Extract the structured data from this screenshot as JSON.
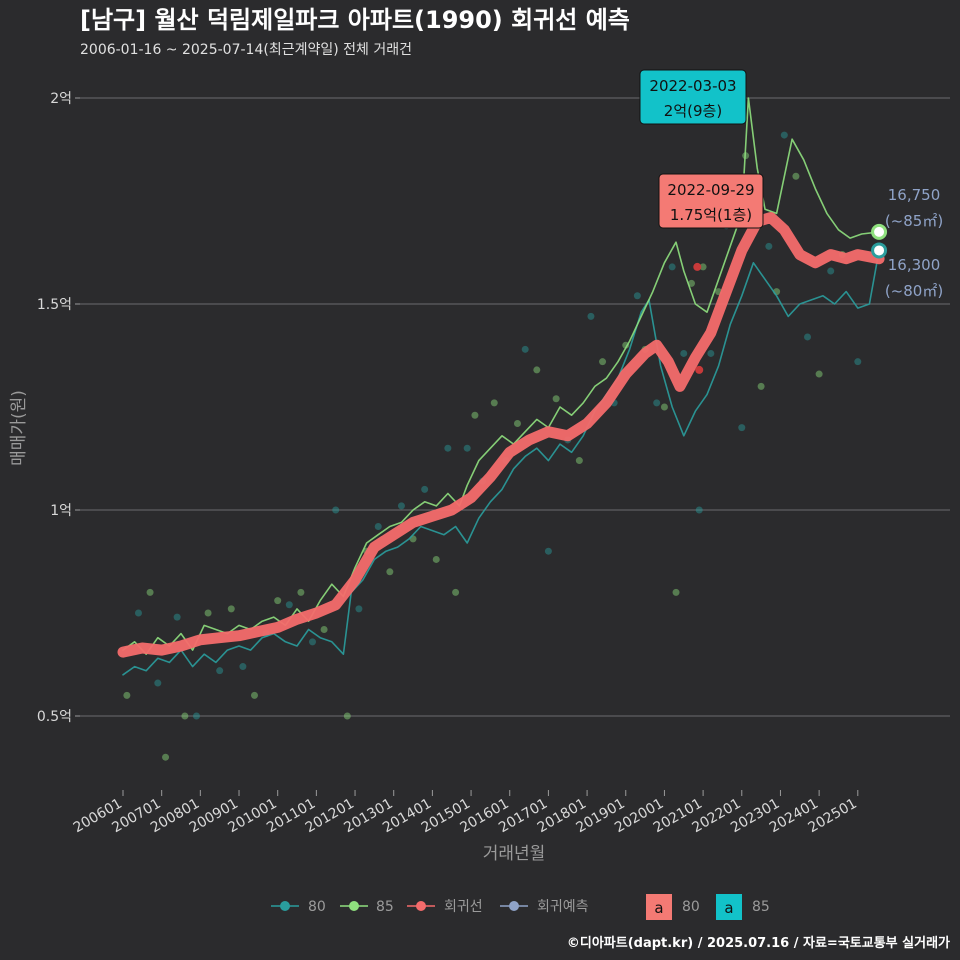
{
  "chart_data": {
    "type": "line",
    "title": "[남구] 월산 덕림제일파크 아파트(1990) 회귀선 예측",
    "subtitle": "2006-01-16 ~ 2025-07-14(최근계약일) 전체 거래건",
    "xlabel": "거래년월",
    "ylabel": "매매가(원)",
    "caption": "©디아파트(dapt.kr) / 2025.07.16 / 자료=국토교통부 실거래가",
    "x_range": [
      "2006-01",
      "2025-07"
    ],
    "ylim": [
      3500,
      20500
    ],
    "y_ticks": [
      {
        "value": 5000,
        "label": "0.5억"
      },
      {
        "value": 10000,
        "label": "1억"
      },
      {
        "value": 15000,
        "label": "1.5억"
      },
      {
        "value": 20000,
        "label": "2억"
      }
    ],
    "x_ticks": [
      "200601",
      "200701",
      "200801",
      "200901",
      "201001",
      "201101",
      "201201",
      "201301",
      "201401",
      "201501",
      "201601",
      "201701",
      "201801",
      "201901",
      "202001",
      "202101",
      "202201",
      "202301",
      "202401",
      "202501"
    ],
    "grid": "horizontal",
    "legend": {
      "position": "bottom",
      "items": [
        {
          "label": "80",
          "color": "#2a9d9d"
        },
        {
          "label": "85",
          "color": "#8fe07e"
        },
        {
          "label": "회귀선",
          "color": "#f46b6b"
        },
        {
          "label": "회귀예측",
          "color": "#8fa3c8"
        }
      ],
      "fill_items": [
        {
          "glyph": "a",
          "label": "80",
          "color": "#f47a74"
        },
        {
          "glyph": "a",
          "label": "85",
          "color": "#12c2c9"
        }
      ]
    },
    "series": [
      {
        "name": "80",
        "color": "#2a9d9d",
        "points": [
          [
            2006.0,
            6000
          ],
          [
            2006.3,
            6200
          ],
          [
            2006.6,
            6100
          ],
          [
            2006.9,
            6400
          ],
          [
            2007.2,
            6300
          ],
          [
            2007.5,
            6600
          ],
          [
            2007.8,
            6200
          ],
          [
            2008.1,
            6500
          ],
          [
            2008.4,
            6300
          ],
          [
            2008.7,
            6600
          ],
          [
            2009.0,
            6700
          ],
          [
            2009.3,
            6600
          ],
          [
            2009.6,
            6900
          ],
          [
            2009.9,
            7000
          ],
          [
            2010.2,
            6800
          ],
          [
            2010.5,
            6700
          ],
          [
            2010.8,
            7100
          ],
          [
            2011.1,
            6900
          ],
          [
            2011.4,
            6800
          ],
          [
            2011.7,
            6500
          ],
          [
            2011.9,
            8000
          ],
          [
            2012.2,
            8300
          ],
          [
            2012.5,
            8800
          ],
          [
            2012.8,
            9000
          ],
          [
            2013.1,
            9100
          ],
          [
            2013.4,
            9300
          ],
          [
            2013.7,
            9600
          ],
          [
            2014.0,
            9500
          ],
          [
            2014.3,
            9400
          ],
          [
            2014.6,
            9600
          ],
          [
            2014.9,
            9200
          ],
          [
            2015.2,
            9800
          ],
          [
            2015.5,
            10200
          ],
          [
            2015.8,
            10500
          ],
          [
            2016.1,
            11000
          ],
          [
            2016.4,
            11300
          ],
          [
            2016.7,
            11500
          ],
          [
            2017.0,
            11200
          ],
          [
            2017.3,
            11600
          ],
          [
            2017.6,
            11400
          ],
          [
            2017.9,
            11800
          ],
          [
            2018.2,
            12400
          ],
          [
            2018.5,
            12800
          ],
          [
            2018.8,
            13200
          ],
          [
            2019.1,
            13900
          ],
          [
            2019.4,
            14800
          ],
          [
            2019.6,
            15100
          ],
          [
            2019.9,
            13500
          ],
          [
            2020.2,
            12500
          ],
          [
            2020.5,
            11800
          ],
          [
            2020.8,
            12400
          ],
          [
            2021.1,
            12800
          ],
          [
            2021.4,
            13500
          ],
          [
            2021.7,
            14500
          ],
          [
            2022.0,
            15200
          ],
          [
            2022.3,
            16000
          ],
          [
            2022.6,
            15600
          ],
          [
            2022.9,
            15200
          ],
          [
            2023.2,
            14700
          ],
          [
            2023.5,
            15000
          ],
          [
            2023.8,
            15100
          ],
          [
            2024.1,
            15200
          ],
          [
            2024.4,
            15000
          ],
          [
            2024.7,
            15300
          ],
          [
            2025.0,
            14900
          ],
          [
            2025.3,
            15000
          ],
          [
            2025.55,
            16300
          ]
        ]
      },
      {
        "name": "85",
        "color": "#8fe07e",
        "points": [
          [
            2006.0,
            6600
          ],
          [
            2006.3,
            6800
          ],
          [
            2006.6,
            6500
          ],
          [
            2006.9,
            6900
          ],
          [
            2007.2,
            6700
          ],
          [
            2007.5,
            7000
          ],
          [
            2007.8,
            6600
          ],
          [
            2008.1,
            7200
          ],
          [
            2008.4,
            7100
          ],
          [
            2008.7,
            7000
          ],
          [
            2009.0,
            7200
          ],
          [
            2009.3,
            7100
          ],
          [
            2009.6,
            7300
          ],
          [
            2009.9,
            7400
          ],
          [
            2010.2,
            7200
          ],
          [
            2010.5,
            7600
          ],
          [
            2010.8,
            7300
          ],
          [
            2011.1,
            7800
          ],
          [
            2011.4,
            8200
          ],
          [
            2011.7,
            7900
          ],
          [
            2012.0,
            8600
          ],
          [
            2012.3,
            9200
          ],
          [
            2012.6,
            9400
          ],
          [
            2012.9,
            9600
          ],
          [
            2013.2,
            9700
          ],
          [
            2013.5,
            10000
          ],
          [
            2013.8,
            10200
          ],
          [
            2014.1,
            10100
          ],
          [
            2014.4,
            10400
          ],
          [
            2014.7,
            10100
          ],
          [
            2014.9,
            10600
          ],
          [
            2015.2,
            11200
          ],
          [
            2015.5,
            11500
          ],
          [
            2015.8,
            11800
          ],
          [
            2016.1,
            11600
          ],
          [
            2016.4,
            11900
          ],
          [
            2016.7,
            12200
          ],
          [
            2017.0,
            12000
          ],
          [
            2017.3,
            12500
          ],
          [
            2017.6,
            12300
          ],
          [
            2017.9,
            12600
          ],
          [
            2018.2,
            13000
          ],
          [
            2018.5,
            13200
          ],
          [
            2018.8,
            13600
          ],
          [
            2019.1,
            14100
          ],
          [
            2019.4,
            14700
          ],
          [
            2019.7,
            15300
          ],
          [
            2020.0,
            16000
          ],
          [
            2020.3,
            16500
          ],
          [
            2020.5,
            15800
          ],
          [
            2020.8,
            15000
          ],
          [
            2021.1,
            14800
          ],
          [
            2021.4,
            15600
          ],
          [
            2021.7,
            16400
          ],
          [
            2022.0,
            17200
          ],
          [
            2022.17,
            20000
          ],
          [
            2022.4,
            18300
          ],
          [
            2022.6,
            17300
          ],
          [
            2022.9,
            17200
          ],
          [
            2023.3,
            19000
          ],
          [
            2023.6,
            18500
          ],
          [
            2023.9,
            17800
          ],
          [
            2024.2,
            17200
          ],
          [
            2024.5,
            16800
          ],
          [
            2024.8,
            16600
          ],
          [
            2025.1,
            16700
          ],
          [
            2025.55,
            16750
          ]
        ]
      },
      {
        "name": "회귀선",
        "color": "#f46b6b",
        "points": [
          [
            2006.0,
            6550
          ],
          [
            2006.5,
            6650
          ],
          [
            2007.0,
            6600
          ],
          [
            2007.5,
            6700
          ],
          [
            2008.0,
            6850
          ],
          [
            2008.5,
            6900
          ],
          [
            2009.0,
            6950
          ],
          [
            2009.5,
            7050
          ],
          [
            2010.0,
            7150
          ],
          [
            2010.5,
            7350
          ],
          [
            2011.0,
            7500
          ],
          [
            2011.5,
            7700
          ],
          [
            2012.0,
            8300
          ],
          [
            2012.5,
            9100
          ],
          [
            2013.0,
            9400
          ],
          [
            2013.5,
            9700
          ],
          [
            2014.0,
            9850
          ],
          [
            2014.5,
            10000
          ],
          [
            2015.0,
            10300
          ],
          [
            2015.5,
            10800
          ],
          [
            2016.0,
            11400
          ],
          [
            2016.5,
            11700
          ],
          [
            2017.0,
            11900
          ],
          [
            2017.5,
            11800
          ],
          [
            2018.0,
            12100
          ],
          [
            2018.5,
            12600
          ],
          [
            2019.0,
            13300
          ],
          [
            2019.5,
            13800
          ],
          [
            2019.8,
            14000
          ],
          [
            2020.1,
            13600
          ],
          [
            2020.4,
            13000
          ],
          [
            2020.8,
            13700
          ],
          [
            2021.2,
            14300
          ],
          [
            2021.6,
            15300
          ],
          [
            2022.0,
            16300
          ],
          [
            2022.4,
            17000
          ],
          [
            2022.75,
            17100
          ],
          [
            2023.1,
            16800
          ],
          [
            2023.5,
            16200
          ],
          [
            2023.9,
            16000
          ],
          [
            2024.3,
            16200
          ],
          [
            2024.7,
            16100
          ],
          [
            2025.0,
            16200
          ],
          [
            2025.55,
            16100
          ]
        ]
      }
    ],
    "scatter_points": [
      [
        2006.1,
        5500
      ],
      [
        2006.4,
        7500
      ],
      [
        2006.7,
        8000
      ],
      [
        2006.9,
        5800
      ],
      [
        2007.1,
        4000
      ],
      [
        2007.4,
        7400
      ],
      [
        2007.6,
        5000
      ],
      [
        2007.9,
        5000
      ],
      [
        2008.2,
        7500
      ],
      [
        2008.5,
        6100
      ],
      [
        2008.8,
        7600
      ],
      [
        2009.1,
        6200
      ],
      [
        2009.4,
        5500
      ],
      [
        2009.7,
        7000
      ],
      [
        2010.0,
        7800
      ],
      [
        2010.3,
        7700
      ],
      [
        2010.6,
        8000
      ],
      [
        2010.9,
        6800
      ],
      [
        2011.2,
        7100
      ],
      [
        2011.5,
        10000
      ],
      [
        2011.8,
        5000
      ],
      [
        2012.1,
        7600
      ],
      [
        2012.3,
        9000
      ],
      [
        2012.6,
        9600
      ],
      [
        2012.9,
        8500
      ],
      [
        2013.2,
        10100
      ],
      [
        2013.5,
        9300
      ],
      [
        2013.8,
        10500
      ],
      [
        2014.1,
        8800
      ],
      [
        2014.4,
        11500
      ],
      [
        2014.6,
        8000
      ],
      [
        2014.9,
        11500
      ],
      [
        2015.1,
        12300
      ],
      [
        2015.3,
        10700
      ],
      [
        2015.6,
        12600
      ],
      [
        2015.9,
        11200
      ],
      [
        2016.2,
        12100
      ],
      [
        2016.4,
        13900
      ],
      [
        2016.7,
        13400
      ],
      [
        2017.0,
        9000
      ],
      [
        2017.2,
        12700
      ],
      [
        2017.5,
        11700
      ],
      [
        2017.8,
        11200
      ],
      [
        2018.1,
        14700
      ],
      [
        2018.4,
        13600
      ],
      [
        2018.7,
        12600
      ],
      [
        2019.0,
        14000
      ],
      [
        2019.3,
        15200
      ],
      [
        2019.5,
        13900
      ],
      [
        2019.8,
        12600
      ],
      [
        2020.0,
        12500
      ],
      [
        2020.2,
        15900
      ],
      [
        2020.3,
        8000
      ],
      [
        2020.5,
        13800
      ],
      [
        2020.7,
        15500
      ],
      [
        2020.9,
        10000
      ],
      [
        2021.0,
        15900
      ],
      [
        2021.2,
        13800
      ],
      [
        2021.4,
        15300
      ],
      [
        2021.6,
        16900
      ],
      [
        2021.8,
        17800
      ],
      [
        2022.0,
        12000
      ],
      [
        2022.1,
        18600
      ],
      [
        2022.3,
        17200
      ],
      [
        2022.5,
        13000
      ],
      [
        2022.7,
        16400
      ],
      [
        2022.9,
        15300
      ],
      [
        2023.1,
        19100
      ],
      [
        2023.4,
        18100
      ],
      [
        2023.7,
        14200
      ],
      [
        2024.0,
        13300
      ],
      [
        2024.3,
        15800
      ],
      [
        2024.6,
        16200
      ],
      [
        2025.0,
        13600
      ]
    ],
    "annotations": [
      {
        "date": "2022-03-03",
        "value": "2억(9층)",
        "color": "#12c2c9"
      },
      {
        "date": "2022-09-29",
        "value": "1.75억(1층)",
        "color": "#f47a74"
      }
    ],
    "end_labels": [
      {
        "value": "16,750",
        "area": "(~85㎡)",
        "color": "#8fe07e"
      },
      {
        "value": "16,300",
        "area": "(~80㎡)",
        "color": "#2a9d9d"
      }
    ]
  }
}
